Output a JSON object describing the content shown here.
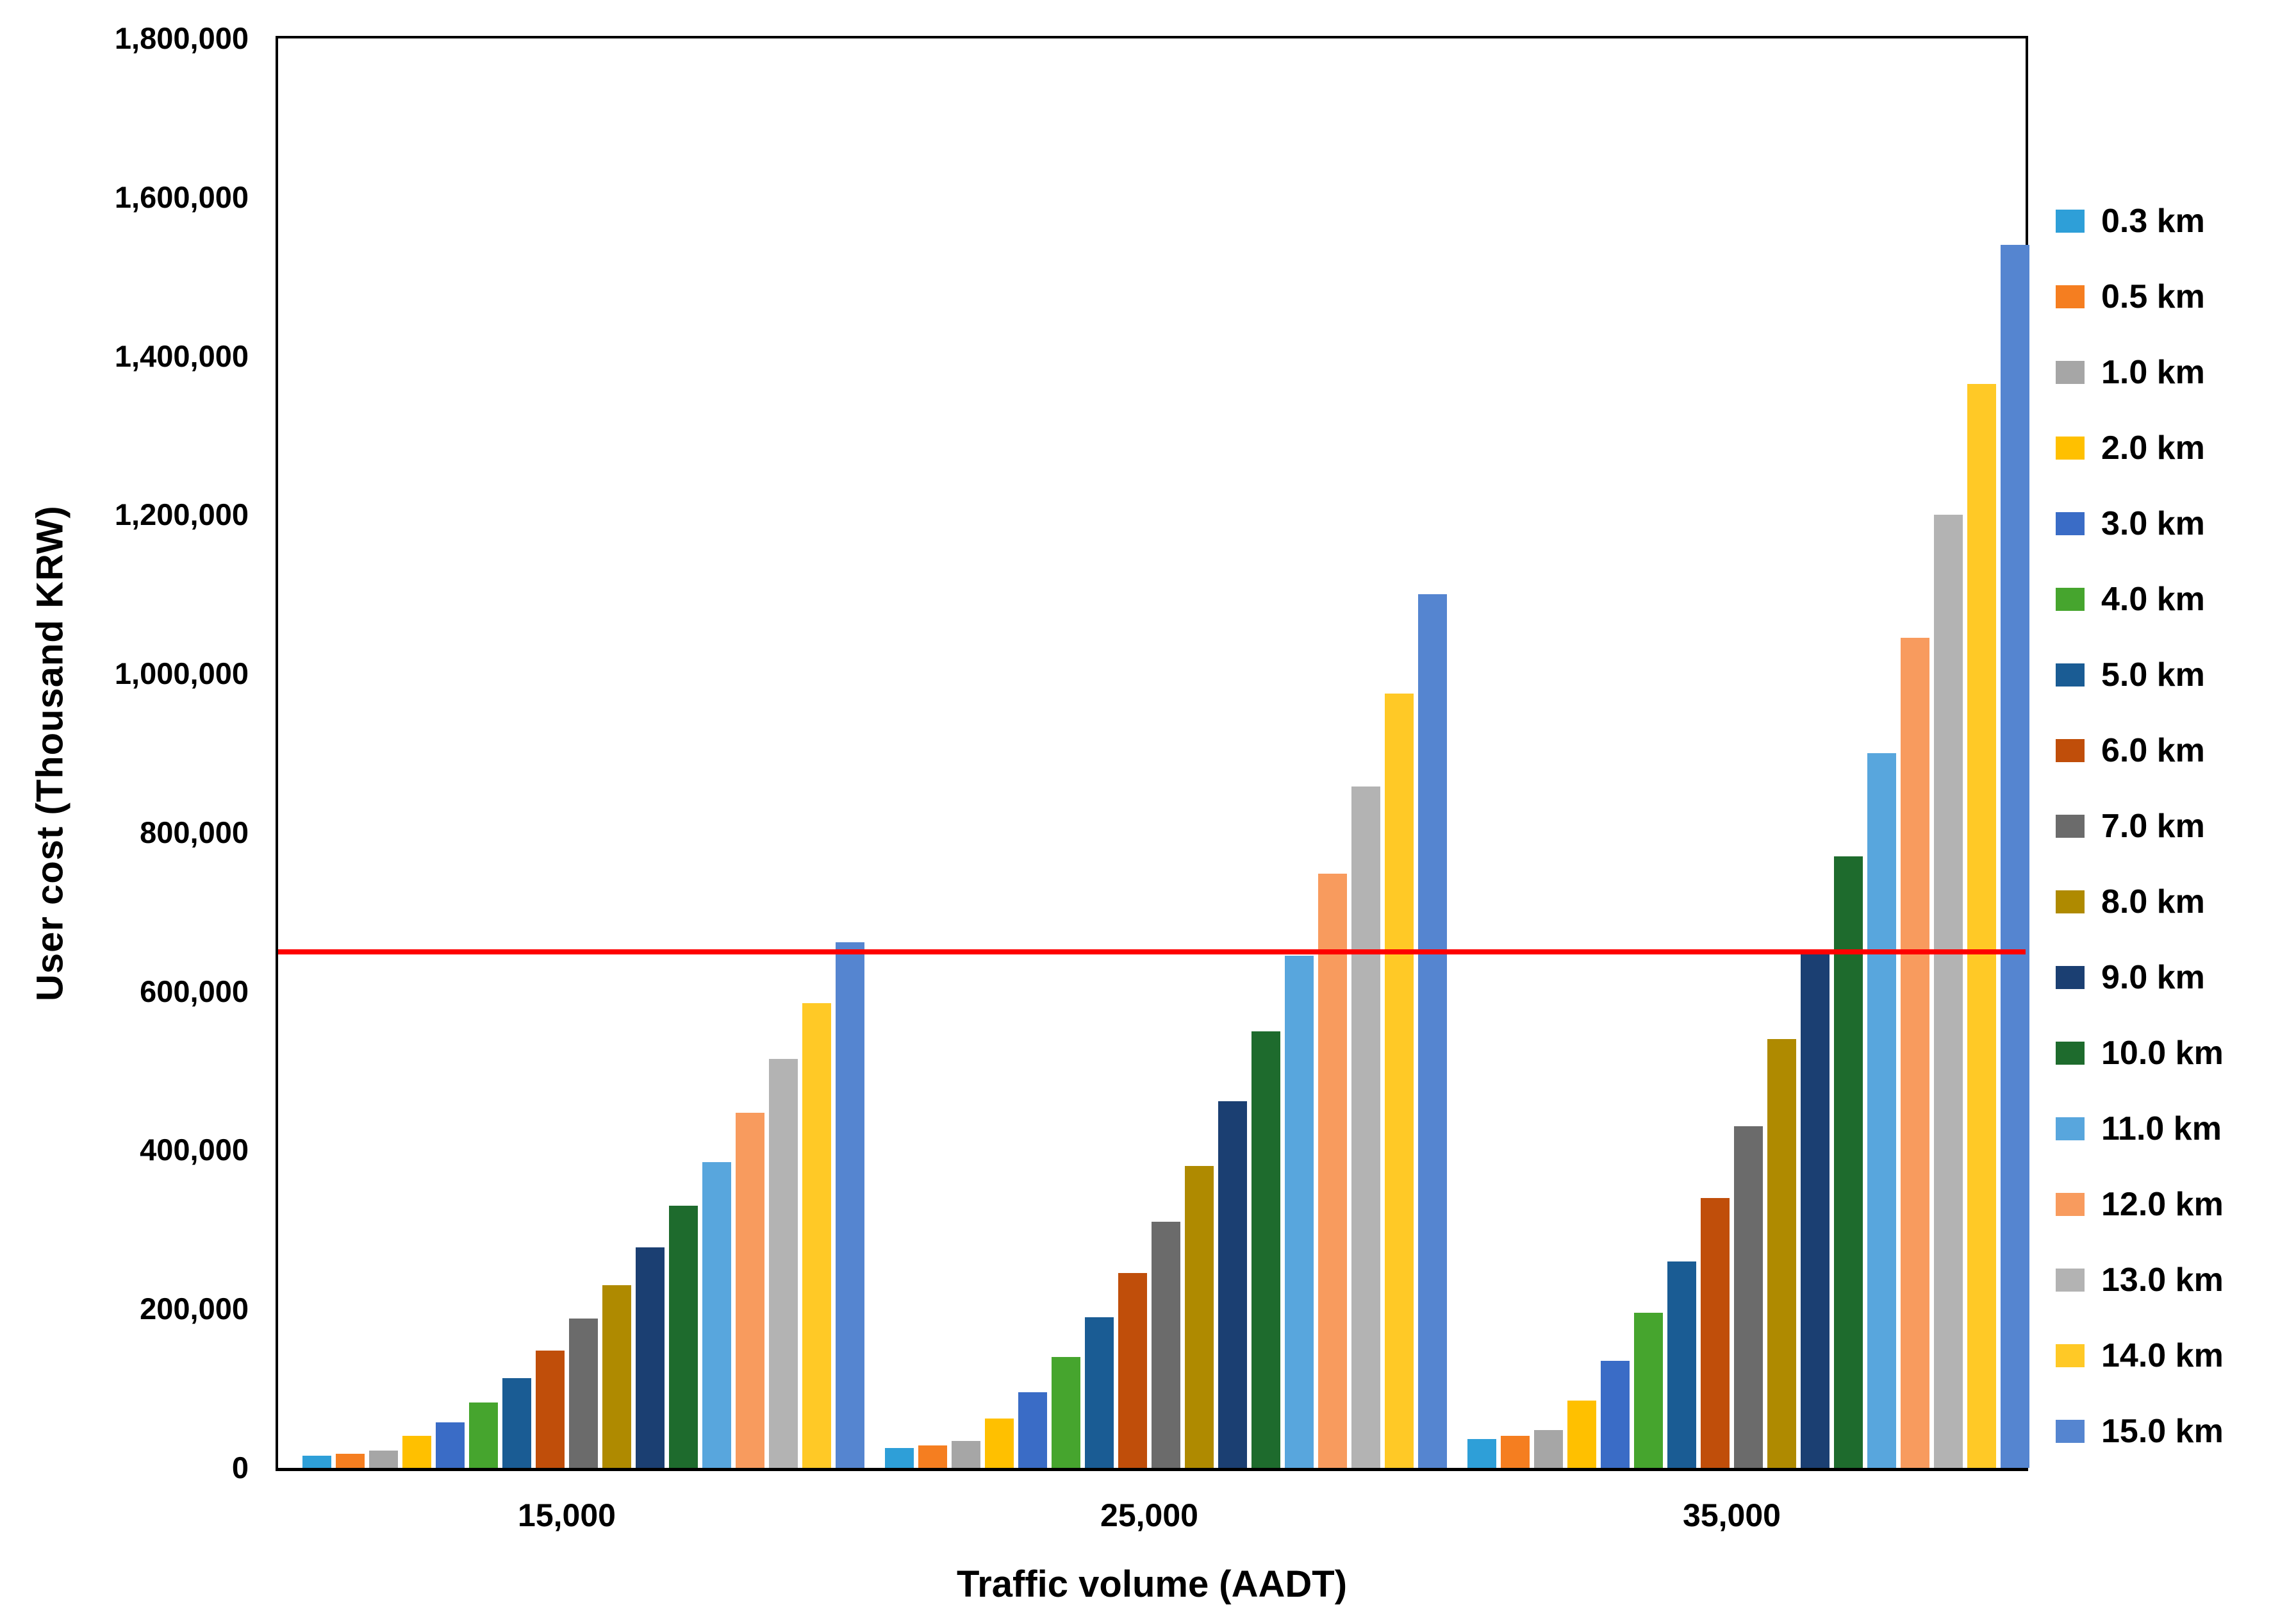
{
  "chart_data": {
    "type": "bar",
    "title": "",
    "xlabel": "Traffic volume (AADT)",
    "ylabel": "User cost (Thousand KRW)",
    "categories": [
      "15,000",
      "25,000",
      "35,000"
    ],
    "ylim": [
      0,
      1800000
    ],
    "ytick_step": 200000,
    "ytick_labels": [
      "0",
      "200,000",
      "400,000",
      "600,000",
      "800,000",
      "1,000,000",
      "1,200,000",
      "1,400,000",
      "1,600,000",
      "1,800,000"
    ],
    "grid": false,
    "legend_position": "right",
    "background": "#ffffff",
    "axis_color": "#000000",
    "reference_line": {
      "value": 650000,
      "color": "#FE0000"
    },
    "series": [
      {
        "name": "0.3 km",
        "color": "#2E9FD8",
        "values": [
          15000,
          25000,
          36000
        ]
      },
      {
        "name": "0.5 km",
        "color": "#F57E20",
        "values": [
          18000,
          28000,
          40000
        ]
      },
      {
        "name": "1.0 km",
        "color": "#A6A6A6",
        "values": [
          22000,
          34000,
          48000
        ]
      },
      {
        "name": "2.0 km",
        "color": "#FFC000",
        "values": [
          40000,
          62000,
          85000
        ]
      },
      {
        "name": "3.0 km",
        "color": "#3A6CC6",
        "values": [
          57000,
          95000,
          135000
        ]
      },
      {
        "name": "4.0 km",
        "color": "#46A52E",
        "values": [
          82000,
          140000,
          195000
        ]
      },
      {
        "name": "5.0 km",
        "color": "#1A5C94",
        "values": [
          113000,
          190000,
          260000
        ]
      },
      {
        "name": "6.0 km",
        "color": "#C04E0A",
        "values": [
          148000,
          245000,
          340000
        ]
      },
      {
        "name": "7.0 km",
        "color": "#6B6B6B",
        "values": [
          188000,
          310000,
          430000
        ]
      },
      {
        "name": "8.0 km",
        "color": "#AF8A00",
        "values": [
          230000,
          380000,
          540000
        ]
      },
      {
        "name": "9.0 km",
        "color": "#1B3F72",
        "values": [
          278000,
          462000,
          648000
        ]
      },
      {
        "name": "10.0 km",
        "color": "#1E6B2D",
        "values": [
          330000,
          550000,
          770000
        ]
      },
      {
        "name": "11.0 km",
        "color": "#58A6DD",
        "values": [
          385000,
          645000,
          900000
        ]
      },
      {
        "name": "12.0 km",
        "color": "#F89B5E",
        "values": [
          447000,
          748000,
          1045000
        ]
      },
      {
        "name": "13.0 km",
        "color": "#B3B3B3",
        "values": [
          515000,
          858000,
          1200000
        ]
      },
      {
        "name": "14.0 km",
        "color": "#FFC926",
        "values": [
          585000,
          975000,
          1365000
        ]
      },
      {
        "name": "15.0 km",
        "color": "#5585D0",
        "values": [
          662000,
          1100000,
          1540000
        ]
      }
    ]
  }
}
